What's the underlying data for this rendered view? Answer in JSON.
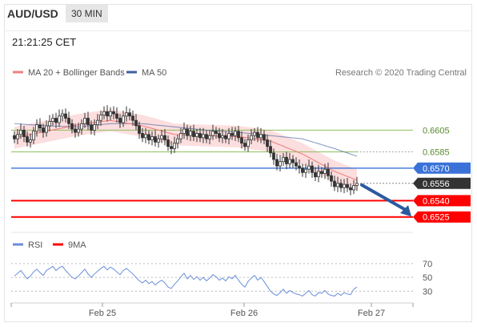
{
  "header": {
    "symbol": "AUD/USD",
    "timeframe": "30 MIN"
  },
  "time_label": "21:21:25 CET",
  "credit": "Research © 2020 Trading Central",
  "colors": {
    "ma20": "#f08080",
    "ma50": "#3f5f9f",
    "band": "#fbd0d0",
    "support": "#ff0000",
    "resistance": "#8fbf5f",
    "pivot": "#3a72d8",
    "current": "#333333",
    "rsi": "#6a8fd8",
    "rsi9ma": "#ff0000",
    "arrow": "#2c5aa0"
  },
  "chart_data": [
    {
      "type": "line",
      "title": "",
      "legend": [
        {
          "name": "MA 20 + Bollinger Bands",
          "color": "#f08080"
        },
        {
          "name": "MA 50",
          "color": "#3f5f9f"
        }
      ],
      "legend_position": "top-left",
      "x_ticks": [
        "Feb 25",
        "Feb 26",
        "Feb 27"
      ],
      "ylim": [
        0.6513,
        0.664
      ],
      "levels": [
        {
          "label": "0.6605",
          "value": 0.6605,
          "kind": "resistance"
        },
        {
          "label": "0.6585",
          "value": 0.6585,
          "kind": "resistance"
        },
        {
          "label": "0.6570",
          "value": 0.657,
          "kind": "pivot"
        },
        {
          "label": "0.6556",
          "value": 0.6556,
          "kind": "current"
        },
        {
          "label": "0.6540",
          "value": 0.654,
          "kind": "support"
        },
        {
          "label": "0.6525",
          "value": 0.6525,
          "kind": "support"
        }
      ],
      "price_closes": [
        0.6597,
        0.6601,
        0.6605,
        0.6599,
        0.6594,
        0.6596,
        0.6604,
        0.661,
        0.6607,
        0.6603,
        0.6609,
        0.6613,
        0.6616,
        0.6612,
        0.6618,
        0.662,
        0.6616,
        0.6611,
        0.6606,
        0.6603,
        0.6606,
        0.6611,
        0.6616,
        0.661,
        0.6605,
        0.661,
        0.6614,
        0.6619,
        0.6622,
        0.6618,
        0.6622,
        0.662,
        0.6616,
        0.6612,
        0.6618,
        0.6621,
        0.6618,
        0.6614,
        0.6609,
        0.6602,
        0.6598,
        0.6601,
        0.6596,
        0.6599,
        0.6594,
        0.6597,
        0.66,
        0.6596,
        0.659,
        0.6588,
        0.6593,
        0.6597,
        0.6602,
        0.6606,
        0.66,
        0.6604,
        0.6599,
        0.6602,
        0.6598,
        0.6601,
        0.6597,
        0.66,
        0.6604,
        0.6602,
        0.6598,
        0.66,
        0.6597,
        0.6602,
        0.66,
        0.6604,
        0.6598,
        0.6593,
        0.659,
        0.6596,
        0.66,
        0.6603,
        0.6598,
        0.6601,
        0.6596,
        0.659,
        0.6584,
        0.6578,
        0.6572,
        0.6576,
        0.658,
        0.6574,
        0.6578,
        0.6575,
        0.6572,
        0.657,
        0.6566,
        0.6569,
        0.6572,
        0.6566,
        0.6562,
        0.6567,
        0.6565,
        0.6569,
        0.6563,
        0.6558,
        0.6553,
        0.6556,
        0.6552,
        0.6555,
        0.6552,
        0.655,
        0.6554,
        0.6556
      ],
      "ma20_points": [
        [
          0,
          0.6598
        ],
        [
          10,
          0.6604
        ],
        [
          20,
          0.661
        ],
        [
          30,
          0.6614
        ],
        [
          40,
          0.6609
        ],
        [
          50,
          0.6601
        ],
        [
          60,
          0.66
        ],
        [
          70,
          0.6599
        ],
        [
          80,
          0.6595
        ],
        [
          90,
          0.6583
        ],
        [
          100,
          0.6567
        ],
        [
          107,
          0.6559
        ]
      ],
      "ma50_points": [
        [
          0,
          0.6611
        ],
        [
          10,
          0.6609
        ],
        [
          20,
          0.6608
        ],
        [
          30,
          0.6611
        ],
        [
          40,
          0.6611
        ],
        [
          50,
          0.6608
        ],
        [
          60,
          0.6605
        ],
        [
          70,
          0.6603
        ],
        [
          80,
          0.66
        ],
        [
          90,
          0.6597
        ],
        [
          100,
          0.6588
        ],
        [
          107,
          0.6581
        ]
      ],
      "band_width": 0.001
    },
    {
      "type": "line",
      "title": "",
      "legend": [
        {
          "name": "RSI",
          "color": "#6a8fd8"
        },
        {
          "name": "9MA",
          "color": "#ff0000"
        }
      ],
      "ylim": [
        20,
        78
      ],
      "y_ticks": [
        "70",
        "50",
        "30"
      ],
      "y_tick_values": [
        70,
        50,
        30
      ],
      "rsi_values": [
        52,
        56,
        60,
        54,
        48,
        52,
        58,
        62,
        57,
        53,
        60,
        63,
        66,
        60,
        64,
        66,
        60,
        55,
        50,
        48,
        52,
        57,
        62,
        55,
        50,
        55,
        59,
        63,
        66,
        61,
        65,
        62,
        58,
        54,
        60,
        63,
        59,
        55,
        50,
        45,
        42,
        46,
        41,
        44,
        39,
        43,
        46,
        42,
        36,
        34,
        40,
        45,
        51,
        56,
        48,
        53,
        47,
        51,
        46,
        50,
        45,
        49,
        54,
        51,
        46,
        49,
        45,
        51,
        48,
        53,
        46,
        40,
        36,
        44,
        49,
        53,
        46,
        50,
        44,
        37,
        30,
        26,
        24,
        28,
        33,
        27,
        31,
        28,
        26,
        25,
        23,
        27,
        31,
        25,
        23,
        28,
        27,
        31,
        26,
        24,
        23,
        27,
        24,
        28,
        26,
        25,
        33,
        36
      ]
    }
  ]
}
